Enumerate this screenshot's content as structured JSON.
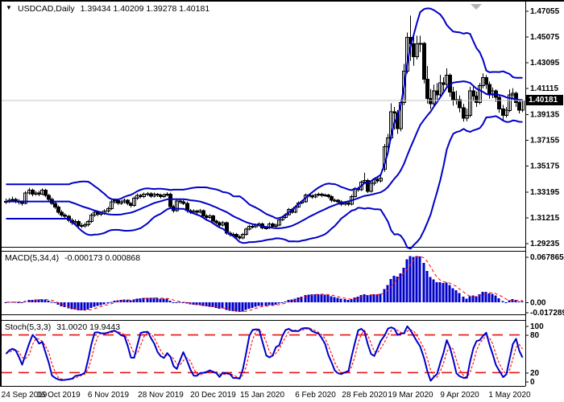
{
  "chart_data": {
    "type": "candlestick",
    "symbol_period": "USDCAD,Daily",
    "title_ohlc": "1.39434 1.40209 1.39278 1.40181",
    "current_price": 1.40181,
    "current_price_label": "1.40181",
    "price_range": {
      "top": 1.4757,
      "bottom": 1.2902
    },
    "y_axis_labels": [
      "1.47055",
      "1.45075",
      "1.43095",
      "1.41115",
      "1.39135",
      "1.37155",
      "1.35175",
      "1.33195",
      "1.31215",
      "1.29235"
    ],
    "x_ticks": [
      {
        "label": "24 Sep 2019",
        "bar": 0
      },
      {
        "label": "16 Oct 2019",
        "bar": 16
      },
      {
        "label": "6 Nov 2019",
        "bar": 31
      },
      {
        "label": "28 Nov 2019",
        "bar": 47
      },
      {
        "label": "20 Dec 2019",
        "bar": 63
      },
      {
        "label": "15 Jan 2020",
        "bar": 78
      },
      {
        "label": "6 Feb 2020",
        "bar": 94
      },
      {
        "label": "28 Feb 2020",
        "bar": 109
      },
      {
        "label": "19 Mar 2020",
        "bar": 123
      },
      {
        "label": "9 Apr 2020",
        "bar": 138
      },
      {
        "label": "1 May 2020",
        "bar": 153
      }
    ],
    "bars_ohlc": [
      [
        1.3238,
        1.3266,
        1.3224,
        1.3245
      ],
      [
        1.3245,
        1.327,
        1.3232,
        1.3252
      ],
      [
        1.3252,
        1.3281,
        1.324,
        1.326
      ],
      [
        1.326,
        1.3272,
        1.323,
        1.3248
      ],
      [
        1.3248,
        1.3262,
        1.322,
        1.3238
      ],
      [
        1.3238,
        1.3252,
        1.3212,
        1.323
      ],
      [
        1.323,
        1.3322,
        1.3222,
        1.331
      ],
      [
        1.331,
        1.3348,
        1.3296,
        1.333
      ],
      [
        1.333,
        1.3342,
        1.3282,
        1.33
      ],
      [
        1.33,
        1.3324,
        1.3288,
        1.331
      ],
      [
        1.331,
        1.3326,
        1.3284,
        1.33
      ],
      [
        1.33,
        1.3344,
        1.3292,
        1.333
      ],
      [
        1.333,
        1.334,
        1.3276,
        1.329
      ],
      [
        1.329,
        1.3302,
        1.3246,
        1.326
      ],
      [
        1.326,
        1.3274,
        1.3216,
        1.323
      ],
      [
        1.323,
        1.3244,
        1.3186,
        1.32
      ],
      [
        1.32,
        1.3214,
        1.3146,
        1.316
      ],
      [
        1.316,
        1.3176,
        1.3126,
        1.314
      ],
      [
        1.314,
        1.3154,
        1.3114,
        1.313
      ],
      [
        1.313,
        1.3142,
        1.3084,
        1.31
      ],
      [
        1.31,
        1.3116,
        1.3064,
        1.308
      ],
      [
        1.308,
        1.3106,
        1.3068,
        1.309
      ],
      [
        1.309,
        1.3102,
        1.3046,
        1.306
      ],
      [
        1.306,
        1.3078,
        1.304,
        1.3055
      ],
      [
        1.3055,
        1.3082,
        1.3042,
        1.3065
      ],
      [
        1.3065,
        1.3104,
        1.3052,
        1.309
      ],
      [
        1.309,
        1.3154,
        1.3078,
        1.314
      ],
      [
        1.314,
        1.3176,
        1.3126,
        1.316
      ],
      [
        1.316,
        1.3172,
        1.313,
        1.3145
      ],
      [
        1.3145,
        1.317,
        1.3132,
        1.3155
      ],
      [
        1.3155,
        1.3184,
        1.3142,
        1.317
      ],
      [
        1.317,
        1.3204,
        1.3158,
        1.319
      ],
      [
        1.319,
        1.3254,
        1.3178,
        1.324
      ],
      [
        1.324,
        1.3264,
        1.3226,
        1.325
      ],
      [
        1.325,
        1.3262,
        1.3216,
        1.323
      ],
      [
        1.323,
        1.3254,
        1.3218,
        1.324
      ],
      [
        1.324,
        1.3266,
        1.3228,
        1.3252
      ],
      [
        1.3252,
        1.3262,
        1.3214,
        1.3228
      ],
      [
        1.3228,
        1.324,
        1.3198,
        1.3212
      ],
      [
        1.3212,
        1.3282,
        1.3202,
        1.3268
      ],
      [
        1.3268,
        1.3304,
        1.3256,
        1.329
      ],
      [
        1.329,
        1.3302,
        1.3268,
        1.3282
      ],
      [
        1.3282,
        1.3312,
        1.327,
        1.3298
      ],
      [
        1.3298,
        1.3316,
        1.3286,
        1.3302
      ],
      [
        1.3302,
        1.3314,
        1.3272,
        1.3285
      ],
      [
        1.3285,
        1.3312,
        1.3274,
        1.3298
      ],
      [
        1.3298,
        1.3308,
        1.3278,
        1.3292
      ],
      [
        1.3292,
        1.3304,
        1.3266,
        1.328
      ],
      [
        1.328,
        1.3306,
        1.327,
        1.3292
      ],
      [
        1.3292,
        1.3314,
        1.3282,
        1.33
      ],
      [
        1.33,
        1.331,
        1.3192,
        1.3205
      ],
      [
        1.3205,
        1.3218,
        1.3158,
        1.3172
      ],
      [
        1.3172,
        1.3262,
        1.3164,
        1.3248
      ],
      [
        1.3248,
        1.3262,
        1.3226,
        1.324
      ],
      [
        1.324,
        1.3254,
        1.3216,
        1.323
      ],
      [
        1.323,
        1.3242,
        1.3158,
        1.3172
      ],
      [
        1.3172,
        1.3186,
        1.3148,
        1.3162
      ],
      [
        1.3162,
        1.3184,
        1.315,
        1.317
      ],
      [
        1.317,
        1.318,
        1.3148,
        1.3162
      ],
      [
        1.3162,
        1.3186,
        1.3152,
        1.3172
      ],
      [
        1.3172,
        1.3182,
        1.3118,
        1.3132
      ],
      [
        1.3132,
        1.3146,
        1.3106,
        1.312
      ],
      [
        1.312,
        1.3146,
        1.311,
        1.3132
      ],
      [
        1.3132,
        1.3142,
        1.3078,
        1.3092
      ],
      [
        1.3092,
        1.3104,
        1.3066,
        1.308
      ],
      [
        1.308,
        1.3092,
        1.3048,
        1.3062
      ],
      [
        1.3062,
        1.3094,
        1.3052,
        1.308
      ],
      [
        1.308,
        1.309,
        1.2988,
        1.3002
      ],
      [
        1.3002,
        1.3016,
        1.2976,
        1.299
      ],
      [
        1.299,
        1.3006,
        1.2978,
        1.2992
      ],
      [
        1.2992,
        1.3002,
        1.2958,
        1.2972
      ],
      [
        1.2972,
        1.2986,
        1.2952,
        1.2962
      ],
      [
        1.2962,
        1.3002,
        1.2954,
        1.299
      ],
      [
        1.299,
        1.3044,
        1.2982,
        1.3032
      ],
      [
        1.3032,
        1.3064,
        1.3022,
        1.3052
      ],
      [
        1.3052,
        1.3064,
        1.3036,
        1.305
      ],
      [
        1.305,
        1.3074,
        1.304,
        1.3062
      ],
      [
        1.3062,
        1.3084,
        1.3052,
        1.3072
      ],
      [
        1.3072,
        1.3082,
        1.303,
        1.3042
      ],
      [
        1.3042,
        1.3054,
        1.3028,
        1.304
      ],
      [
        1.304,
        1.3084,
        1.3032,
        1.3072
      ],
      [
        1.3072,
        1.3082,
        1.304,
        1.3052
      ],
      [
        1.3052,
        1.3074,
        1.3044,
        1.3062
      ],
      [
        1.3062,
        1.3114,
        1.3054,
        1.3102
      ],
      [
        1.3102,
        1.3134,
        1.3094,
        1.3122
      ],
      [
        1.3122,
        1.3154,
        1.3112,
        1.3142
      ],
      [
        1.3142,
        1.3194,
        1.3134,
        1.3182
      ],
      [
        1.3182,
        1.3194,
        1.315,
        1.3162
      ],
      [
        1.3162,
        1.3214,
        1.3154,
        1.3202
      ],
      [
        1.3202,
        1.3244,
        1.3194,
        1.3232
      ],
      [
        1.3232,
        1.3254,
        1.3222,
        1.3242
      ],
      [
        1.3242,
        1.3304,
        1.3234,
        1.3292
      ],
      [
        1.3292,
        1.3302,
        1.3274,
        1.3288
      ],
      [
        1.3288,
        1.3298,
        1.3264,
        1.3278
      ],
      [
        1.3278,
        1.3304,
        1.3268,
        1.3292
      ],
      [
        1.3292,
        1.3312,
        1.3282,
        1.33
      ],
      [
        1.33,
        1.331,
        1.3276,
        1.329
      ],
      [
        1.329,
        1.3304,
        1.328,
        1.3292
      ],
      [
        1.3292,
        1.3302,
        1.3268,
        1.3282
      ],
      [
        1.3282,
        1.3292,
        1.3238,
        1.3252
      ],
      [
        1.3252,
        1.3266,
        1.324,
        1.3252
      ],
      [
        1.3252,
        1.3262,
        1.3228,
        1.3242
      ],
      [
        1.3242,
        1.3254,
        1.3208,
        1.3222
      ],
      [
        1.3222,
        1.3244,
        1.3212,
        1.3232
      ],
      [
        1.3232,
        1.3242,
        1.3208,
        1.3222
      ],
      [
        1.3222,
        1.3294,
        1.3214,
        1.3282
      ],
      [
        1.3282,
        1.3354,
        1.3274,
        1.3342
      ],
      [
        1.3342,
        1.3356,
        1.3318,
        1.3332
      ],
      [
        1.3332,
        1.3404,
        1.3324,
        1.3392
      ],
      [
        1.3392,
        1.3464,
        1.3384,
        1.3405
      ],
      [
        1.3405,
        1.3418,
        1.3308,
        1.3322
      ],
      [
        1.3322,
        1.3394,
        1.3312,
        1.3382
      ],
      [
        1.3382,
        1.3424,
        1.3366,
        1.3412
      ],
      [
        1.3412,
        1.3436,
        1.3386,
        1.3402
      ],
      [
        1.3402,
        1.3444,
        1.3388,
        1.3422
      ],
      [
        1.349,
        1.3684,
        1.347,
        1.3662
      ],
      [
        1.3662,
        1.3762,
        1.3602,
        1.3732
      ],
      [
        1.3732,
        1.3996,
        1.3716,
        1.3932
      ],
      [
        1.3932,
        1.3968,
        1.3794,
        1.3922
      ],
      [
        1.3922,
        1.3944,
        1.3762,
        1.3802
      ],
      [
        1.3802,
        1.4022,
        1.3782,
        1.4002
      ],
      [
        1.4002,
        1.4298,
        1.3982,
        1.4242
      ],
      [
        1.4242,
        1.4538,
        1.4224,
        1.4502
      ],
      [
        1.4502,
        1.4668,
        1.4322,
        1.4452
      ],
      [
        1.4452,
        1.4522,
        1.4284,
        1.4352
      ],
      [
        1.4352,
        1.4514,
        1.4332,
        1.4452
      ],
      [
        1.4452,
        1.4514,
        1.4388,
        1.4455
      ],
      [
        1.4455,
        1.4466,
        1.4148,
        1.4182
      ],
      [
        1.4182,
        1.4282,
        1.3994,
        1.4032
      ],
      [
        1.4032,
        1.4106,
        1.3952,
        1.3992
      ],
      [
        1.3992,
        1.4138,
        1.3974,
        1.4092
      ],
      [
        1.4092,
        1.415,
        1.4022,
        1.4062
      ],
      [
        1.4062,
        1.4214,
        1.4042,
        1.4152
      ],
      [
        1.4152,
        1.4196,
        1.4082,
        1.4142
      ],
      [
        1.4142,
        1.4264,
        1.4122,
        1.4212
      ],
      [
        1.4212,
        1.4226,
        1.4046,
        1.4082
      ],
      [
        1.4082,
        1.4122,
        1.3978,
        1.4022
      ],
      [
        1.4022,
        1.4092,
        1.3986,
        1.4025
      ],
      [
        1.4025,
        1.4056,
        1.3926,
        1.3962
      ],
      [
        1.3962,
        1.3992,
        1.3856,
        1.3882
      ],
      [
        1.3882,
        1.3956,
        1.3858,
        1.3902
      ],
      [
        1.3902,
        1.4122,
        1.3888,
        1.4092
      ],
      [
        1.4092,
        1.4136,
        1.4012,
        1.4052
      ],
      [
        1.4052,
        1.4088,
        1.3968,
        1.4002
      ],
      [
        1.4002,
        1.4152,
        1.3988,
        1.4132
      ],
      [
        1.4132,
        1.4226,
        1.4112,
        1.4192
      ],
      [
        1.4192,
        1.4212,
        1.4106,
        1.4142
      ],
      [
        1.4142,
        1.4162,
        1.4032,
        1.4062
      ],
      [
        1.4062,
        1.4118,
        1.4036,
        1.4092
      ],
      [
        1.4092,
        1.4104,
        1.4006,
        1.4042
      ],
      [
        1.4042,
        1.4062,
        1.3924,
        1.3952
      ],
      [
        1.3952,
        1.3984,
        1.3866,
        1.3902
      ],
      [
        1.3902,
        1.3968,
        1.3886,
        1.3942
      ],
      [
        1.3942,
        1.4102,
        1.3928,
        1.4062
      ],
      [
        1.4062,
        1.4112,
        1.4036,
        1.4072
      ],
      [
        1.4072,
        1.4086,
        1.3968,
        1.4002
      ],
      [
        1.4002,
        1.4016,
        1.3918,
        1.3943
      ],
      [
        1.39434,
        1.40209,
        1.39278,
        1.40181
      ]
    ],
    "overlays": {
      "bollinger": {
        "period": 20,
        "deviations": 2
      }
    },
    "indicators": [
      {
        "id": "macd",
        "title": "MACD(5,34,4)",
        "values_text": "-0.000173 0.000868",
        "fast": 5,
        "slow": 34,
        "signal": 4,
        "axis_labels": [
          "0.067865",
          "0.00",
          "-0.017289"
        ]
      },
      {
        "id": "stoch",
        "title": "Stoch(5,3,3)",
        "values_text": "31.0020 19.9443",
        "k_period": 5,
        "d_period": 3,
        "slowing": 3,
        "axis_labels": [
          "100",
          "80",
          "20",
          "0"
        ],
        "levels": [
          80,
          20
        ]
      }
    ]
  },
  "icons": {
    "symbol_dropdown": "▼"
  },
  "colors": {
    "background": "#ffffff",
    "frame": "#000000",
    "indicator_blue": "#0000c8",
    "signal_red": "#ff0000",
    "level_red": "#e81212",
    "bull_body": "#ffffff",
    "bear_body": "#000000",
    "candle_outline": "#000000",
    "price_line": "#c4c4c4",
    "price_tag_bg": "#000000",
    "price_tag_text": "#ffffff",
    "shift_marker": "#b4b4b4"
  }
}
